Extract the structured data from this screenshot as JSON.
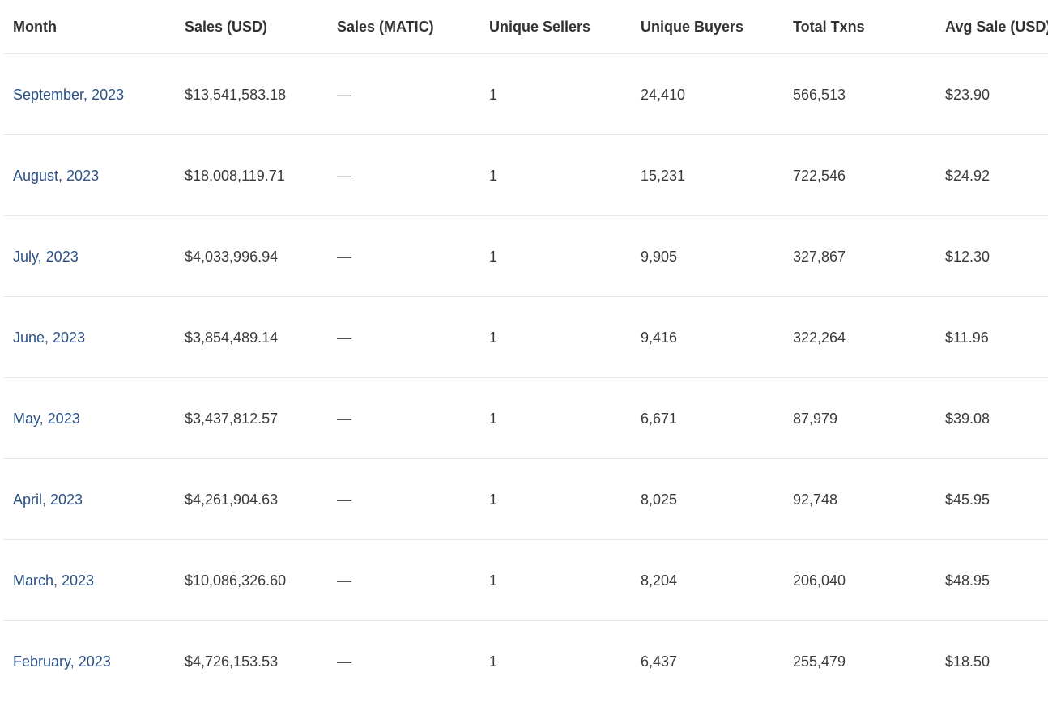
{
  "table": {
    "columns": [
      "Month",
      "Sales (USD)",
      "Sales (MATIC)",
      "Unique Sellers",
      "Unique Buyers",
      "Total Txns",
      "Avg Sale (USD)"
    ],
    "rows": [
      {
        "month": "September, 2023",
        "sales_usd": "$13,541,583.18",
        "sales_matic": "—",
        "unique_sellers": "1",
        "unique_buyers": "24,410",
        "total_txns": "566,513",
        "avg_sale_usd": "$23.90"
      },
      {
        "month": "August, 2023",
        "sales_usd": "$18,008,119.71",
        "sales_matic": "—",
        "unique_sellers": "1",
        "unique_buyers": "15,231",
        "total_txns": "722,546",
        "avg_sale_usd": "$24.92"
      },
      {
        "month": "July, 2023",
        "sales_usd": "$4,033,996.94",
        "sales_matic": "—",
        "unique_sellers": "1",
        "unique_buyers": "9,905",
        "total_txns": "327,867",
        "avg_sale_usd": "$12.30"
      },
      {
        "month": "June, 2023",
        "sales_usd": "$3,854,489.14",
        "sales_matic": "—",
        "unique_sellers": "1",
        "unique_buyers": "9,416",
        "total_txns": "322,264",
        "avg_sale_usd": "$11.96"
      },
      {
        "month": "May, 2023",
        "sales_usd": "$3,437,812.57",
        "sales_matic": "—",
        "unique_sellers": "1",
        "unique_buyers": "6,671",
        "total_txns": "87,979",
        "avg_sale_usd": "$39.08"
      },
      {
        "month": "April, 2023",
        "sales_usd": "$4,261,904.63",
        "sales_matic": "—",
        "unique_sellers": "1",
        "unique_buyers": "8,025",
        "total_txns": "92,748",
        "avg_sale_usd": "$45.95"
      },
      {
        "month": "March, 2023",
        "sales_usd": "$10,086,326.60",
        "sales_matic": "—",
        "unique_sellers": "1",
        "unique_buyers": "8,204",
        "total_txns": "206,040",
        "avg_sale_usd": "$48.95"
      },
      {
        "month": "February, 2023",
        "sales_usd": "$4,726,153.53",
        "sales_matic": "—",
        "unique_sellers": "1",
        "unique_buyers": "6,437",
        "total_txns": "255,479",
        "avg_sale_usd": "$18.50"
      }
    ]
  },
  "colors": {
    "link": "#2b5186",
    "text": "#333333",
    "divider": "#e6e6e6"
  }
}
